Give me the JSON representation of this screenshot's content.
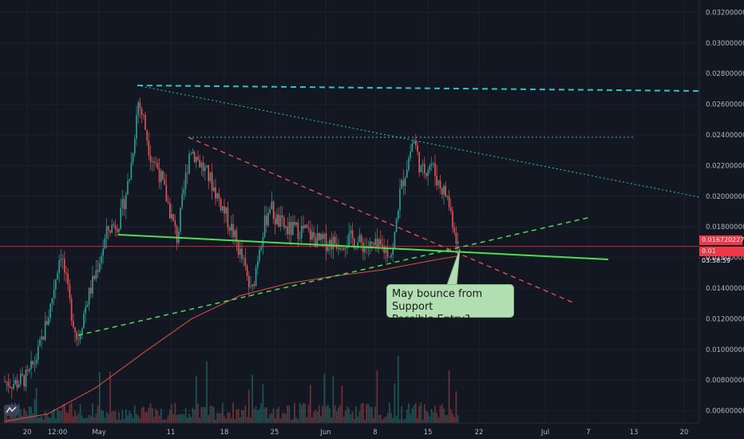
{
  "chart_data": {
    "type": "candlestick",
    "y_axis_ticks": [
      "0.0320000000",
      "0.0300000000",
      "0.0280000000",
      "0.0260000000",
      "0.0240000000",
      "0.0220000000",
      "0.0200000000",
      "0.0180000000",
      "0.0160000000",
      "0.0140000000",
      "0.0120000000",
      "0.0100000000",
      "0.0080000000",
      "0.0060000000"
    ],
    "x_axis_ticks": [
      "20",
      "12:00",
      "May",
      "11",
      "18",
      "25",
      "Jun",
      "8",
      "15",
      "22",
      "Jul",
      "7",
      "13",
      "20"
    ],
    "ylim": [
      0.0052,
      0.0328
    ],
    "last_price": "0.0167202275",
    "price_tag_prefix": "0.01",
    "countdown": "03:58:59",
    "annotation": {
      "line1": "May bounce from Support",
      "line2": "Possible Entry?"
    },
    "colors": {
      "background": "#131722",
      "up": "#26a69a",
      "down": "#ef5350",
      "support_line": "#4be04b",
      "trend_dashed_green": "#4be04b",
      "resistance_dashed_red": "#ef5350",
      "resistance_dotted_cyan": "#2ec4c4",
      "moving_average": "#e05040",
      "price_line": "#f23645",
      "callout_bg": "#b2dfb2"
    },
    "moving_average_shown": true,
    "volume_bars_shown": true,
    "grid": true
  }
}
